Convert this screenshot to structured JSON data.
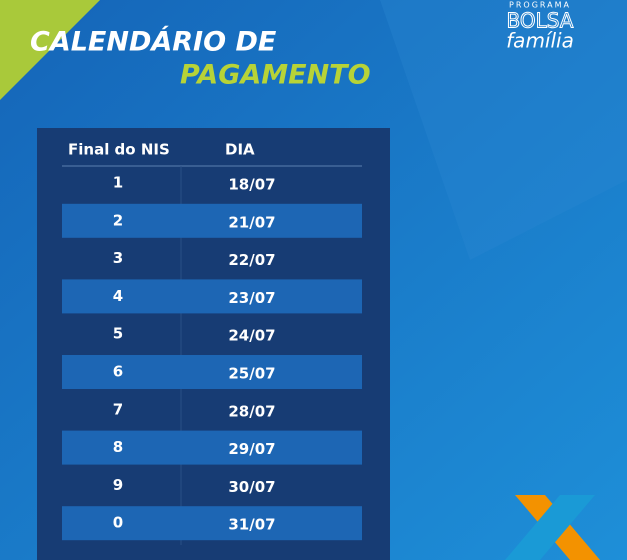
{
  "header": {
    "title_line1": "CALENDÁRIO DE",
    "title_line2": "PAGAMENTO"
  },
  "logo": {
    "top": "PROGRAMA",
    "middle": "BOLSA",
    "bottom": "família"
  },
  "table": {
    "columns": [
      "Final do NIS",
      "DIA"
    ],
    "rows": [
      [
        "1",
        "18/07"
      ],
      [
        "2",
        "21/07"
      ],
      [
        "3",
        "22/07"
      ],
      [
        "4",
        "23/07"
      ],
      [
        "5",
        "24/07"
      ],
      [
        "6",
        "25/07"
      ],
      [
        "7",
        "28/07"
      ],
      [
        "8",
        "29/07"
      ],
      [
        "9",
        "30/07"
      ],
      [
        "0",
        "31/07"
      ]
    ]
  }
}
